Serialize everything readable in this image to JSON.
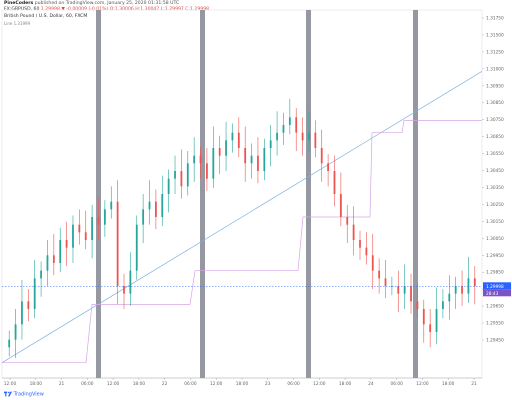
{
  "header": {
    "publisher": "PineCoders",
    "published_text": "published on TradingView.com, January 25, 2020 01:31:58 UTC",
    "symbol": "FX:GBPUSD, 60",
    "ohlc_text": "1.29998  ▼ -0.00009 (-0.01%)  O:1.30006  H:1.30047  L:1.29997  C:1.29998",
    "chart_title": "British Pound / U.S. Dollar, 60, FXCM",
    "indicator_label": "Line  1.31999"
  },
  "price_axis": {
    "labels": [
      "1.31750",
      "1.31500",
      "1.31250",
      "1.31000",
      "1.30950",
      "1.30850",
      "1.30750",
      "1.30650",
      "1.30550",
      "1.30450",
      "1.30350",
      "1.30250",
      "1.30150",
      "1.30050",
      "1.29950",
      "1.29850",
      "1.29750",
      "1.29650",
      "1.29550",
      "1.29450"
    ],
    "current_price": "1.29998",
    "countdown": "28:43",
    "current_color": "#2962ff",
    "countdown_color": "#7b53c9"
  },
  "time_axis": {
    "labels": [
      "12:00",
      "18:00",
      "21",
      "06:00",
      "12:00",
      "18:00",
      "22",
      "06:00",
      "12:00",
      "18:00",
      "23",
      "06:00",
      "12:00",
      "18:00",
      "24",
      "06:00",
      "12:00",
      "18:00",
      "21"
    ]
  },
  "footer": {
    "brand": "TradingView"
  },
  "colors": {
    "up": "#26a69a",
    "down": "#ef5350",
    "session_band": "#9598a1",
    "trend_line": "#7fb3e0",
    "step_line": "#d5a6e6"
  },
  "chart_data": {
    "type": "candlestick",
    "symbol": "FX:GBPUSD",
    "timeframe": "60",
    "ylim": [
      1.294,
      1.318
    ],
    "current_price": 1.29998,
    "series": [
      {
        "name": "price",
        "values": [
          1.2965,
          1.2975,
          1.299,
          1.2985,
          1.3005,
          1.301,
          1.302,
          1.3015,
          1.303,
          1.3025,
          1.304,
          1.3035,
          1.303,
          1.3045,
          1.304,
          1.305,
          1.3055,
          1.3,
          1.2995,
          1.301,
          1.304,
          1.305,
          1.3055,
          1.3045,
          1.306,
          1.307,
          1.3075,
          1.3065,
          1.308,
          1.3085,
          1.308,
          1.307,
          1.309,
          1.3085,
          1.3095,
          1.31,
          1.309,
          1.308,
          1.3085,
          1.3075,
          1.309,
          1.3095,
          1.31,
          1.3105,
          1.311,
          1.31,
          1.3095,
          1.31,
          1.309,
          1.308,
          1.3075,
          1.306,
          1.3045,
          1.304,
          1.303,
          1.3025,
          1.302,
          1.301,
          1.3005,
          1.3,
          1.3,
          1.2995,
          1.3,
          1.299,
          1.2985,
          1.2975,
          1.297,
          1.2985,
          1.299,
          1.2995,
          1.3,
          1.2995,
          1.3005,
          1.3
        ]
      }
    ]
  }
}
